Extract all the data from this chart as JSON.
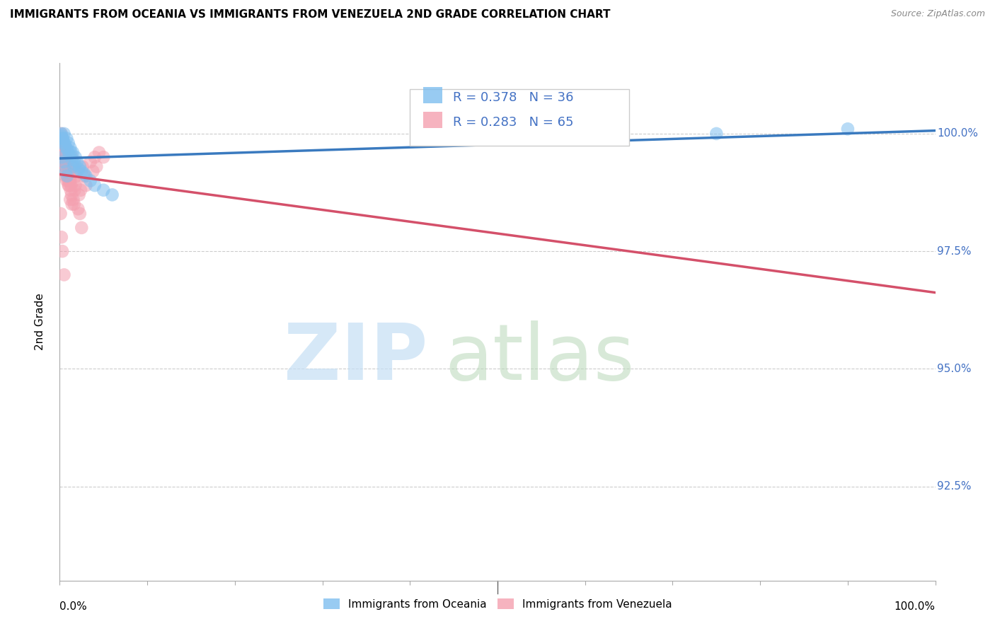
{
  "title": "IMMIGRANTS FROM OCEANIA VS IMMIGRANTS FROM VENEZUELA 2ND GRADE CORRELATION CHART",
  "source": "Source: ZipAtlas.com",
  "ylabel": "2nd Grade",
  "y_tick_labels": [
    "92.5%",
    "95.0%",
    "97.5%",
    "100.0%"
  ],
  "y_tick_values": [
    92.5,
    95.0,
    97.5,
    100.0
  ],
  "xlim": [
    0.0,
    100.0
  ],
  "ylim": [
    90.5,
    101.5
  ],
  "legend_oceania": "Immigrants from Oceania",
  "legend_venezuela": "Immigrants from Venezuela",
  "R_oceania": 0.378,
  "N_oceania": 36,
  "R_venezuela": 0.283,
  "N_venezuela": 65,
  "color_oceania": "#7fbfef",
  "color_venezuela": "#f4a0b0",
  "color_line_oceania": "#3a7abf",
  "color_line_venezuela": "#d4506a",
  "oceania_x": [
    0.3,
    0.5,
    0.8,
    1.0,
    1.2,
    1.5,
    1.8,
    2.0,
    2.3,
    2.5,
    3.0,
    3.5,
    4.0,
    5.0,
    6.0,
    0.2,
    0.4,
    0.6,
    0.9,
    1.1,
    1.4,
    1.7,
    2.2,
    2.8,
    0.15,
    0.35,
    0.55,
    0.75,
    1.3,
    0.25,
    0.45,
    1.6,
    0.7,
    0.85,
    75.0,
    90.0
  ],
  "oceania_y": [
    99.9,
    100.0,
    99.9,
    99.8,
    99.7,
    99.6,
    99.5,
    99.4,
    99.3,
    99.2,
    99.1,
    99.0,
    98.9,
    98.8,
    98.7,
    99.95,
    99.85,
    99.75,
    99.65,
    99.55,
    99.45,
    99.35,
    99.25,
    99.15,
    100.0,
    99.9,
    99.8,
    99.7,
    99.6,
    99.5,
    99.4,
    99.3,
    99.2,
    99.1,
    100.0,
    100.1
  ],
  "venezuela_x": [
    0.1,
    0.2,
    0.3,
    0.4,
    0.5,
    0.6,
    0.7,
    0.8,
    0.9,
    1.0,
    1.1,
    1.2,
    1.3,
    1.4,
    1.5,
    1.6,
    1.7,
    1.8,
    1.9,
    2.0,
    2.2,
    2.4,
    2.6,
    2.8,
    3.0,
    3.5,
    4.0,
    0.15,
    0.25,
    0.35,
    0.45,
    0.55,
    0.65,
    0.75,
    0.85,
    0.95,
    1.05,
    1.25,
    1.55,
    1.65,
    0.1,
    0.2,
    0.3,
    0.5,
    3.8,
    4.2,
    0.8,
    1.0,
    0.7,
    0.9,
    2.5,
    0.3,
    1.2,
    1.4,
    2.1,
    2.3,
    4.5,
    5.0,
    0.4,
    0.6,
    0.35,
    0.55,
    0.65,
    1.15,
    1.35
  ],
  "venezuela_y": [
    99.9,
    100.0,
    99.9,
    99.8,
    99.7,
    99.6,
    99.5,
    99.4,
    99.3,
    99.2,
    99.1,
    99.0,
    98.9,
    99.5,
    99.3,
    99.0,
    98.8,
    98.9,
    99.1,
    99.2,
    98.7,
    98.8,
    99.3,
    99.1,
    98.9,
    99.4,
    99.5,
    99.8,
    99.7,
    99.6,
    99.5,
    99.4,
    99.3,
    99.2,
    99.1,
    99.0,
    98.9,
    98.8,
    98.6,
    98.5,
    98.3,
    97.8,
    97.5,
    97.0,
    99.2,
    99.3,
    99.0,
    98.9,
    99.1,
    99.2,
    98.0,
    99.6,
    98.6,
    98.5,
    98.4,
    98.3,
    99.6,
    99.5,
    99.8,
    99.7,
    99.6,
    99.4,
    99.3,
    99.0,
    98.7
  ]
}
